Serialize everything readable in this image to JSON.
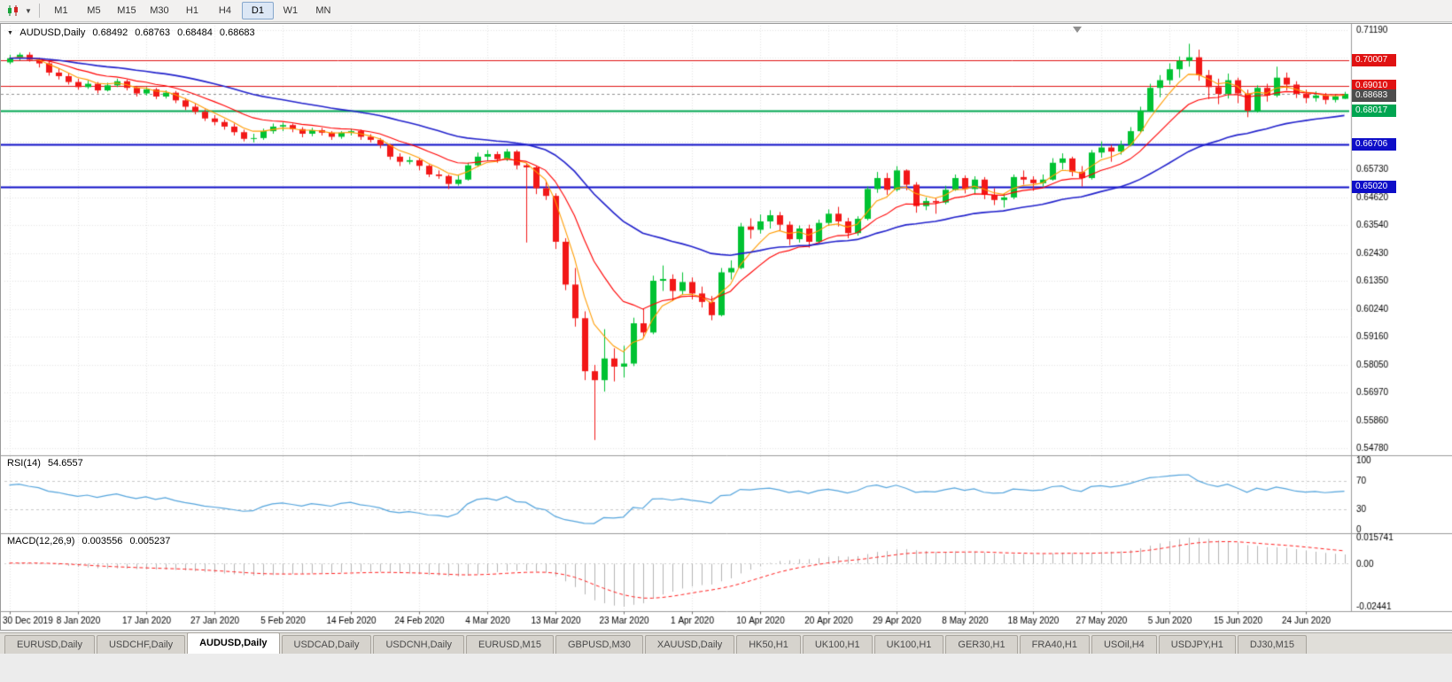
{
  "toolbar": {
    "chart_type_icon": "candlestick-chart-icon",
    "dropdown_icon": "chevron-down-icon",
    "timeframes": [
      {
        "label": "M1",
        "active": false
      },
      {
        "label": "M5",
        "active": false
      },
      {
        "label": "M15",
        "active": false
      },
      {
        "label": "M30",
        "active": false
      },
      {
        "label": "H1",
        "active": false
      },
      {
        "label": "H4",
        "active": false
      },
      {
        "label": "D1",
        "active": true
      },
      {
        "label": "W1",
        "active": false
      },
      {
        "label": "MN",
        "active": false
      }
    ]
  },
  "chart": {
    "symbol": "AUDUSD,Daily",
    "ohlc": {
      "open": "0.68492",
      "high": "0.68763",
      "low": "0.68484",
      "close": "0.68683"
    },
    "current_price": {
      "label": "0.68683",
      "color": "#4d4d4d"
    },
    "levels": [
      {
        "label": "0.70007",
        "color": "#e01212",
        "width": 1
      },
      {
        "label": "0.69010",
        "color": "#e01212",
        "width": 1
      },
      {
        "label": "0.68017",
        "color": "#00a551",
        "width": 2
      },
      {
        "label": "0.66706",
        "color": "#0e0ec8",
        "width": 2
      },
      {
        "label": "0.65020",
        "color": "#0e0ec8",
        "width": 2
      }
    ],
    "y_axis_labels": [
      "0.71190",
      "0.65730",
      "0.64620",
      "0.63540",
      "0.62430",
      "0.61350",
      "0.60240",
      "0.59160",
      "0.58050",
      "0.56970",
      "0.55860",
      "0.54780"
    ]
  },
  "chart_data": {
    "type": "candlestick",
    "title": "AUDUSD Daily",
    "ylim": [
      0.5478,
      0.7136
    ],
    "x_label_step": 7,
    "x_labels": [
      "30 Dec 2019",
      "8 Jan 2020",
      "17 Jan 2020",
      "27 Jan 2020",
      "5 Feb 2020",
      "14 Feb 2020",
      "24 Feb 2020",
      "4 Mar 2020",
      "13 Mar 2020",
      "23 Mar 2020",
      "1 Apr 2020",
      "10 Apr 2020",
      "20 Apr 2020",
      "29 Apr 2020",
      "8 May 2020",
      "18 May 2020",
      "27 May 2020",
      "5 Jun 2020",
      "15 Jun 2020",
      "24 Jun 2020"
    ],
    "bull_color": "#00c232",
    "bear_color": "#f21818",
    "candles": [
      [
        0.6992,
        0.7022,
        0.6985,
        0.7008
      ],
      [
        0.7008,
        0.703,
        0.7,
        0.7022
      ],
      [
        0.7022,
        0.7032,
        0.6995,
        0.7002
      ],
      [
        0.7002,
        0.701,
        0.6972,
        0.6988
      ],
      [
        0.6988,
        0.6995,
        0.694,
        0.6952
      ],
      [
        0.6952,
        0.6968,
        0.6925,
        0.6938
      ],
      [
        0.6938,
        0.695,
        0.6905,
        0.6915
      ],
      [
        0.6915,
        0.6928,
        0.6885,
        0.6895
      ],
      [
        0.6895,
        0.692,
        0.6888,
        0.6908
      ],
      [
        0.6908,
        0.6915,
        0.687,
        0.6882
      ],
      [
        0.6882,
        0.6912,
        0.6878,
        0.6902
      ],
      [
        0.6902,
        0.6928,
        0.6895,
        0.6918
      ],
      [
        0.6918,
        0.6925,
        0.6882,
        0.6892
      ],
      [
        0.6892,
        0.69,
        0.6858,
        0.687
      ],
      [
        0.687,
        0.6895,
        0.6862,
        0.6886
      ],
      [
        0.6886,
        0.6892,
        0.6848,
        0.6858
      ],
      [
        0.6858,
        0.6882,
        0.685,
        0.6873
      ],
      [
        0.6873,
        0.688,
        0.6832,
        0.6843
      ],
      [
        0.6843,
        0.6852,
        0.6805,
        0.6818
      ],
      [
        0.6818,
        0.683,
        0.6788,
        0.6798
      ],
      [
        0.6798,
        0.6808,
        0.6762,
        0.6772
      ],
      [
        0.6772,
        0.6785,
        0.6745,
        0.6758
      ],
      [
        0.6758,
        0.6768,
        0.6728,
        0.674
      ],
      [
        0.674,
        0.6752,
        0.6705,
        0.6718
      ],
      [
        0.6718,
        0.6728,
        0.6682,
        0.6692
      ],
      [
        0.6692,
        0.6712,
        0.6678,
        0.6695
      ],
      [
        0.6695,
        0.6732,
        0.6688,
        0.6722
      ],
      [
        0.6722,
        0.6752,
        0.6712,
        0.674
      ],
      [
        0.674,
        0.6756,
        0.6722,
        0.6746
      ],
      [
        0.6746,
        0.6752,
        0.6718,
        0.673
      ],
      [
        0.673,
        0.6738,
        0.6698,
        0.6712
      ],
      [
        0.6712,
        0.6735,
        0.6702,
        0.6726
      ],
      [
        0.6726,
        0.6735,
        0.6705,
        0.6716
      ],
      [
        0.6716,
        0.6722,
        0.6688,
        0.67
      ],
      [
        0.67,
        0.6722,
        0.6692,
        0.6716
      ],
      [
        0.6716,
        0.6732,
        0.6705,
        0.6722
      ],
      [
        0.6722,
        0.6728,
        0.6688,
        0.67
      ],
      [
        0.67,
        0.671,
        0.6678,
        0.6688
      ],
      [
        0.6688,
        0.6695,
        0.6655,
        0.6668
      ],
      [
        0.6668,
        0.6672,
        0.661,
        0.6622
      ],
      [
        0.6622,
        0.6635,
        0.6585,
        0.6602
      ],
      [
        0.6602,
        0.6622,
        0.6592,
        0.6608
      ],
      [
        0.6608,
        0.6615,
        0.6568,
        0.6586
      ],
      [
        0.6586,
        0.6592,
        0.6542,
        0.6552
      ],
      [
        0.6552,
        0.6568,
        0.6535,
        0.6546
      ],
      [
        0.6546,
        0.6552,
        0.6495,
        0.6515
      ],
      [
        0.6515,
        0.6548,
        0.6508,
        0.6532
      ],
      [
        0.6532,
        0.6598,
        0.6528,
        0.6588
      ],
      [
        0.6588,
        0.6638,
        0.6582,
        0.6622
      ],
      [
        0.6622,
        0.6648,
        0.6605,
        0.6632
      ],
      [
        0.6632,
        0.6642,
        0.6598,
        0.6612
      ],
      [
        0.6612,
        0.6652,
        0.6605,
        0.6642
      ],
      [
        0.6642,
        0.6648,
        0.6572,
        0.6588
      ],
      [
        0.6588,
        0.6598,
        0.6285,
        0.658
      ],
      [
        0.658,
        0.6585,
        0.6475,
        0.6498
      ],
      [
        0.6498,
        0.6528,
        0.6452,
        0.6468
      ],
      [
        0.6468,
        0.6478,
        0.626,
        0.6288
      ],
      [
        0.6288,
        0.6302,
        0.6098,
        0.612
      ],
      [
        0.612,
        0.6185,
        0.5955,
        0.5988
      ],
      [
        0.5988,
        0.6015,
        0.5745,
        0.578
      ],
      [
        0.578,
        0.5805,
        0.551,
        0.5745
      ],
      [
        0.5745,
        0.5945,
        0.57,
        0.583
      ],
      [
        0.583,
        0.587,
        0.574,
        0.5798
      ],
      [
        0.5798,
        0.588,
        0.5755,
        0.581
      ],
      [
        0.581,
        0.599,
        0.58,
        0.5968
      ],
      [
        0.5968,
        0.6025,
        0.591,
        0.5932
      ],
      [
        0.5932,
        0.6155,
        0.5925,
        0.6135
      ],
      [
        0.6135,
        0.6195,
        0.6095,
        0.6142
      ],
      [
        0.6142,
        0.616,
        0.6055,
        0.6095
      ],
      [
        0.6095,
        0.6168,
        0.608,
        0.613
      ],
      [
        0.613,
        0.6148,
        0.6062,
        0.6085
      ],
      [
        0.6085,
        0.6112,
        0.603,
        0.6052
      ],
      [
        0.6052,
        0.6075,
        0.598,
        0.6
      ],
      [
        0.6,
        0.6185,
        0.5995,
        0.6168
      ],
      [
        0.6168,
        0.6215,
        0.614,
        0.6185
      ],
      [
        0.6185,
        0.6362,
        0.618,
        0.6348
      ],
      [
        0.6348,
        0.638,
        0.63,
        0.6335
      ],
      [
        0.6335,
        0.6395,
        0.632,
        0.6368
      ],
      [
        0.6368,
        0.6412,
        0.634,
        0.6392
      ],
      [
        0.6392,
        0.6405,
        0.6332,
        0.6355
      ],
      [
        0.6355,
        0.6368,
        0.6275,
        0.6298
      ],
      [
        0.6298,
        0.6352,
        0.6285,
        0.634
      ],
      [
        0.634,
        0.6355,
        0.6265,
        0.6288
      ],
      [
        0.6288,
        0.6375,
        0.628,
        0.6362
      ],
      [
        0.6362,
        0.6415,
        0.635,
        0.6398
      ],
      [
        0.6398,
        0.6425,
        0.6348,
        0.6368
      ],
      [
        0.6368,
        0.6382,
        0.6302,
        0.6322
      ],
      [
        0.6322,
        0.6388,
        0.6312,
        0.6378
      ],
      [
        0.6378,
        0.6505,
        0.6372,
        0.6495
      ],
      [
        0.6495,
        0.6562,
        0.648,
        0.6538
      ],
      [
        0.6538,
        0.6558,
        0.6472,
        0.6492
      ],
      [
        0.6492,
        0.6585,
        0.6485,
        0.6568
      ],
      [
        0.6568,
        0.6572,
        0.649,
        0.6512
      ],
      [
        0.6512,
        0.6522,
        0.6402,
        0.6428
      ],
      [
        0.6428,
        0.6462,
        0.6412,
        0.6448
      ],
      [
        0.6448,
        0.6458,
        0.6398,
        0.6442
      ],
      [
        0.6442,
        0.6508,
        0.6435,
        0.6492
      ],
      [
        0.6492,
        0.6552,
        0.6488,
        0.6538
      ],
      [
        0.6538,
        0.6548,
        0.6478,
        0.6495
      ],
      [
        0.6495,
        0.6545,
        0.6475,
        0.6532
      ],
      [
        0.6532,
        0.6542,
        0.6455,
        0.6472
      ],
      [
        0.6472,
        0.6498,
        0.6432,
        0.6452
      ],
      [
        0.6452,
        0.6478,
        0.6422,
        0.6462
      ],
      [
        0.6462,
        0.6552,
        0.6455,
        0.6542
      ],
      [
        0.6542,
        0.6568,
        0.6512,
        0.6532
      ],
      [
        0.6532,
        0.6545,
        0.6488,
        0.6518
      ],
      [
        0.6518,
        0.6552,
        0.6505,
        0.6532
      ],
      [
        0.6532,
        0.6616,
        0.6528,
        0.6598
      ],
      [
        0.6598,
        0.6635,
        0.6572,
        0.6615
      ],
      [
        0.6615,
        0.6622,
        0.6545,
        0.6562
      ],
      [
        0.6562,
        0.6585,
        0.6505,
        0.6538
      ],
      [
        0.6538,
        0.6648,
        0.6532,
        0.6638
      ],
      [
        0.6638,
        0.6682,
        0.6618,
        0.6658
      ],
      [
        0.6658,
        0.6668,
        0.6602,
        0.6642
      ],
      [
        0.6642,
        0.6685,
        0.663,
        0.6668
      ],
      [
        0.6668,
        0.6738,
        0.6662,
        0.6722
      ],
      [
        0.6722,
        0.6818,
        0.6715,
        0.6802
      ],
      [
        0.6802,
        0.6908,
        0.6798,
        0.6892
      ],
      [
        0.6892,
        0.6942,
        0.6855,
        0.6922
      ],
      [
        0.6922,
        0.6988,
        0.6905,
        0.6965
      ],
      [
        0.6965,
        0.7015,
        0.6932,
        0.6998
      ],
      [
        0.6998,
        0.7065,
        0.6975,
        0.7012
      ],
      [
        0.7012,
        0.7042,
        0.692,
        0.6942
      ],
      [
        0.6942,
        0.6962,
        0.6848,
        0.6895
      ],
      [
        0.6895,
        0.6928,
        0.6828,
        0.6868
      ],
      [
        0.6868,
        0.6948,
        0.685,
        0.6922
      ],
      [
        0.6922,
        0.6932,
        0.6832,
        0.687
      ],
      [
        0.687,
        0.6885,
        0.6777,
        0.6802
      ],
      [
        0.6802,
        0.6902,
        0.6795,
        0.6892
      ],
      [
        0.6892,
        0.6908,
        0.6838,
        0.6862
      ],
      [
        0.6862,
        0.6975,
        0.6855,
        0.6932
      ],
      [
        0.6932,
        0.6952,
        0.6882,
        0.6905
      ],
      [
        0.6905,
        0.6918,
        0.6852,
        0.6868
      ],
      [
        0.6868,
        0.6885,
        0.6832,
        0.6852
      ],
      [
        0.6852,
        0.6878,
        0.6838,
        0.6862
      ],
      [
        0.6862,
        0.6872,
        0.6828,
        0.6845
      ],
      [
        0.6845,
        0.6868,
        0.6835,
        0.6858
      ],
      [
        0.68492,
        0.68763,
        0.68484,
        0.68683
      ]
    ],
    "overlays": [
      {
        "name": "ma-fast",
        "period": 5,
        "color": "#ff9c00"
      },
      {
        "name": "ma-mid",
        "period": 12,
        "color": "#ff0000"
      },
      {
        "name": "ma-slow",
        "period": 34,
        "color": "#2222cc"
      }
    ],
    "indicators": {
      "rsi": {
        "label": "RSI(14)",
        "value": "54.6557",
        "period": 14,
        "color": "#55a5dd",
        "levels": [
          70,
          30
        ],
        "axis_labels": [
          "100",
          "70",
          "30",
          "0"
        ]
      },
      "macd": {
        "label": "MACD(12,26,9)",
        "macd_value": "0.003556",
        "signal_value": "0.005237",
        "fast": 12,
        "slow": 26,
        "signal": 9,
        "histogram_color": "#b4b4b4",
        "signal_color": "#ff2020",
        "axis_labels": [
          "0.015741",
          "0.00",
          "-0.02441"
        ]
      }
    }
  },
  "tabs": [
    {
      "label": "EURUSD,Daily",
      "active": false
    },
    {
      "label": "USDCHF,Daily",
      "active": false
    },
    {
      "label": "AUDUSD,Daily",
      "active": true
    },
    {
      "label": "USDCAD,Daily",
      "active": false
    },
    {
      "label": "USDCNH,Daily",
      "active": false
    },
    {
      "label": "EURUSD,M15",
      "active": false
    },
    {
      "label": "GBPUSD,M30",
      "active": false
    },
    {
      "label": "XAUUSD,Daily",
      "active": false
    },
    {
      "label": "HK50,H1",
      "active": false
    },
    {
      "label": "UK100,H1",
      "active": false
    },
    {
      "label": "UK100,H1",
      "active": false
    },
    {
      "label": "GER30,H1",
      "active": false
    },
    {
      "label": "FRA40,H1",
      "active": false
    },
    {
      "label": "USOil,H4",
      "active": false
    },
    {
      "label": "USDJPY,H1",
      "active": false
    },
    {
      "label": "DJ30,M15",
      "active": false
    }
  ]
}
